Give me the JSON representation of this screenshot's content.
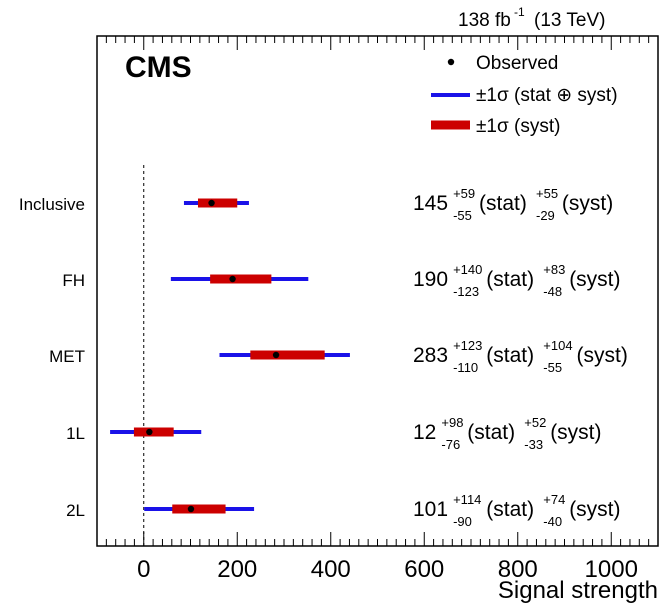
{
  "header": {
    "lumi_value": "138 fb",
    "lumi_exp": "-1",
    "energy": "(13 TeV)"
  },
  "cms_label": "CMS",
  "chart_data": {
    "type": "forest",
    "xlabel": "Signal strength",
    "xlim": [
      -100,
      1100
    ],
    "xticks": [
      0,
      200,
      400,
      600,
      800,
      1000
    ],
    "reference_line_x": 0,
    "legend": {
      "placement": "top-right",
      "entries": [
        {
          "key": "observed",
          "label": "Observed"
        },
        {
          "key": "total",
          "label": "±1σ (stat ⊕ syst)"
        },
        {
          "key": "syst",
          "label": "±1σ (syst)"
        }
      ]
    },
    "colors": {
      "total": "#1a12e8",
      "syst": "#cc0000",
      "point": "#000000"
    },
    "categories": [
      {
        "name": "Inclusive",
        "value": 145,
        "stat_up": "+59",
        "stat_down": "-55",
        "syst_up": "+55",
        "syst_down": "-29",
        "total_low": 86,
        "total_high": 225,
        "syst_low": 116,
        "syst_high": 200
      },
      {
        "name": "FH",
        "value": 190,
        "stat_up": "+140",
        "stat_down": "-123",
        "syst_up": "+83",
        "syst_down": "-48",
        "total_low": 58,
        "total_high": 352,
        "syst_low": 142,
        "syst_high": 273
      },
      {
        "name": "MET",
        "value": 283,
        "stat_up": "+123",
        "stat_down": "-110",
        "syst_up": "+104",
        "syst_down": "-55",
        "total_low": 162,
        "total_high": 441,
        "syst_low": 228,
        "syst_high": 387
      },
      {
        "name": "1L",
        "value": 12,
        "stat_up": "+98",
        "stat_down": "-76",
        "syst_up": "+52",
        "syst_down": "-33",
        "total_low": -72,
        "total_high": 123,
        "syst_low": -21,
        "syst_high": 64
      },
      {
        "name": "2L",
        "value": 101,
        "stat_up": "+114",
        "stat_down": "-90",
        "syst_up": "+74",
        "syst_down": "-40",
        "total_low": 1,
        "total_high": 236,
        "syst_low": 61,
        "syst_high": 175
      }
    ],
    "stat_label": "(stat)",
    "syst_label": "(syst)"
  }
}
